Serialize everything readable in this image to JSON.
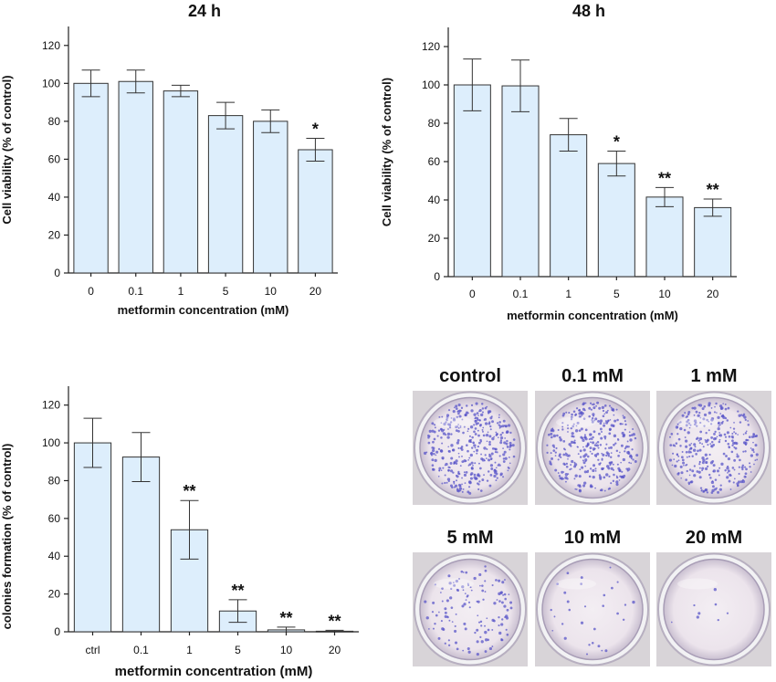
{
  "chart_data": [
    {
      "type": "bar",
      "title": "24 h",
      "xlabel": "metformin concentration (mM)",
      "ylabel": "Cell viability (% of control)",
      "categories": [
        "0",
        "0.1",
        "1",
        "5",
        "10",
        "20"
      ],
      "values": [
        100,
        101,
        96,
        83,
        80,
        65
      ],
      "errors": [
        7,
        6,
        3,
        7,
        6,
        6
      ],
      "significance": [
        "",
        "",
        "",
        "",
        "",
        "*"
      ],
      "ylim": [
        0,
        130
      ],
      "yticks": [
        0,
        20,
        40,
        60,
        80,
        100,
        120
      ],
      "bar_color": "#ddeefc"
    },
    {
      "type": "bar",
      "title": "48 h",
      "xlabel": "metformin concentration (mM)",
      "ylabel": "Cell viability (% of control)",
      "categories": [
        "0",
        "0.1",
        "1",
        "5",
        "10",
        "20"
      ],
      "values": [
        100,
        99.5,
        74,
        59,
        41.5,
        36
      ],
      "errors": [
        13.5,
        13.5,
        8.5,
        6.5,
        5,
        4.5
      ],
      "significance": [
        "",
        "",
        "",
        "*",
        "**",
        "**"
      ],
      "ylim": [
        0,
        130
      ],
      "yticks": [
        0,
        20,
        40,
        60,
        80,
        100,
        120
      ],
      "bar_color": "#ddeefc"
    },
    {
      "type": "bar",
      "title": "",
      "xlabel": "metformin concentration (mM)",
      "ylabel": "colonies formation (% of control)",
      "categories": [
        "ctrl",
        "0.1",
        "1",
        "5",
        "10",
        "20"
      ],
      "values": [
        100,
        92.5,
        54,
        11,
        1,
        0.3
      ],
      "errors": [
        13,
        13,
        15.5,
        6,
        1.5,
        0.5
      ],
      "significance": [
        "",
        "",
        "**",
        "**",
        "**",
        "**"
      ],
      "ylim": [
        0,
        130
      ],
      "yticks": [
        0,
        20,
        40,
        60,
        80,
        100,
        120
      ],
      "bar_color": "#ddeefc"
    }
  ],
  "plates": {
    "labels": [
      "control",
      "0.1 mM",
      "1 mM",
      "5 mM",
      "10 mM",
      "20 mM"
    ],
    "colony_density": [
      1.0,
      0.95,
      0.85,
      0.35,
      0.08,
      0.02
    ],
    "colony_color": "#5a55c8",
    "dish_color": "#ece4ec"
  }
}
